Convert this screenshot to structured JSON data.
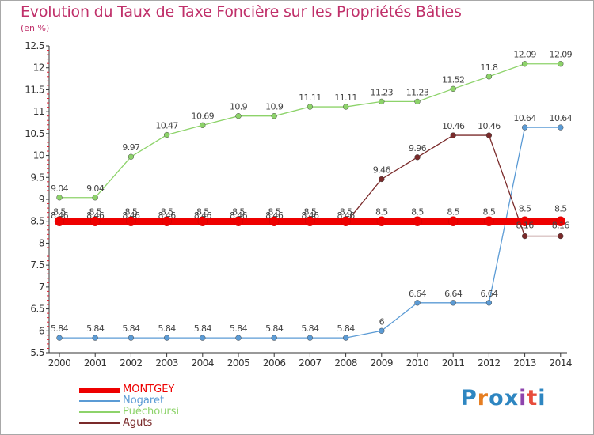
{
  "header": {
    "title": "Evolution du Taux de Taxe Foncière sur les Propriétés Bâties",
    "unit": "(en %)"
  },
  "chart_data": {
    "type": "line",
    "title": "Evolution du Taux de Taxe Foncière sur les Propriétés Bâties",
    "ylabel": "(en %)",
    "xlabel": "",
    "categories": [
      "2000",
      "2001",
      "2002",
      "2003",
      "2004",
      "2005",
      "2006",
      "2007",
      "2008",
      "2009",
      "2010",
      "2011",
      "2012",
      "2013",
      "2014"
    ],
    "ylim": [
      5.5,
      12.5
    ],
    "yticks": [
      "5.5",
      "6",
      "6.5",
      "7",
      "7.5",
      "8",
      "8.5",
      "9",
      "9.5",
      "10",
      "10.5",
      "11",
      "11.5",
      "12",
      "12.5"
    ],
    "grid": false,
    "series": [
      {
        "name": "MONTGEY",
        "color": "#ee0000",
        "values": [
          8.5,
          8.5,
          8.5,
          8.5,
          8.5,
          8.5,
          8.5,
          8.5,
          8.5,
          8.5,
          8.5,
          8.5,
          8.5,
          8.5,
          8.5
        ],
        "labels": [
          "8.5",
          "8.5",
          "8.5",
          "8.5",
          "8.5",
          "8.5",
          "8.5",
          "8.5",
          "8.5",
          "8.5",
          "8.5",
          "8.5",
          "8.5",
          "8.5",
          "8.5"
        ]
      },
      {
        "name": "Nogaret",
        "color": "#5b9bd5",
        "values": [
          5.84,
          5.84,
          5.84,
          5.84,
          5.84,
          5.84,
          5.84,
          5.84,
          5.84,
          6,
          6.64,
          6.64,
          6.64,
          10.64,
          10.64
        ],
        "labels": [
          "5.84",
          "5.84",
          "5.84",
          "5.84",
          "5.84",
          "5.84",
          "5.84",
          "5.84",
          "5.84",
          "6",
          "6.64",
          "6.64",
          "6.64",
          "10.64",
          "10.64"
        ]
      },
      {
        "name": "Puéchoursi",
        "color": "#8dd36a",
        "values": [
          9.04,
          9.04,
          9.97,
          10.47,
          10.69,
          10.9,
          10.9,
          11.11,
          11.11,
          11.23,
          11.23,
          11.52,
          11.8,
          12.09,
          12.09
        ],
        "labels": [
          "9.04",
          "9.04",
          "9.97",
          "10.47",
          "10.69",
          "10.9",
          "10.9",
          "11.11",
          "11.11",
          "11.23",
          "11.23",
          "11.52",
          "11.8",
          "12.09",
          "12.09"
        ]
      },
      {
        "name": "Aguts",
        "color": "#7a2a2a",
        "values": [
          8.46,
          8.46,
          8.46,
          8.46,
          8.46,
          8.46,
          8.46,
          8.46,
          8.46,
          9.46,
          9.96,
          10.46,
          10.46,
          8.16,
          8.16
        ],
        "labels": [
          "8.46",
          "8.46",
          "8.46",
          "8.46",
          "8.46",
          "8.46",
          "8.46",
          "8.46",
          "8.46",
          "9.46",
          "9.96",
          "10.46",
          "10.46",
          "8.16",
          "8.16"
        ]
      }
    ]
  },
  "legend": {
    "items": [
      {
        "label": "MONTGEY",
        "color": "#ee0000"
      },
      {
        "label": "Nogaret",
        "color": "#5b9bd5"
      },
      {
        "label": "Puéchoursi",
        "color": "#8dd36a"
      },
      {
        "label": "Aguts",
        "color": "#7a2a2a"
      }
    ]
  },
  "brand": {
    "logo_text": "Proxiti",
    "letter_colors": [
      "#2e86c1",
      "#e67e22",
      "#2e86c1",
      "#2e86c1",
      "#8e44ad",
      "#e74c3c",
      "#2e86c1"
    ]
  }
}
